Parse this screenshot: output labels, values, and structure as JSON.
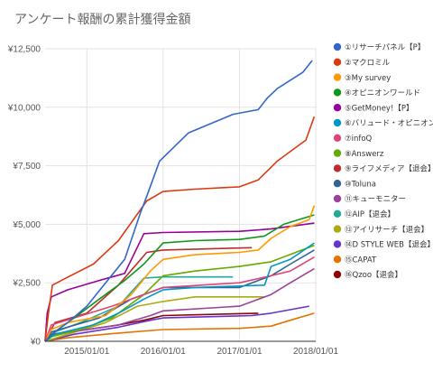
{
  "chart_data": {
    "type": "line",
    "title": "アンケート報酬の累計獲得金額",
    "xlabel": "",
    "ylabel": "",
    "x_range": [
      "2014-06-15",
      "2018-01-01"
    ],
    "ylim": [
      0,
      12500
    ],
    "y_ticks": [
      0,
      2500,
      5000,
      7500,
      10000,
      12500
    ],
    "y_tick_labels": [
      "¥0",
      "¥2,500",
      "¥5,000",
      "¥7,500",
      "¥10,000",
      "¥12,500"
    ],
    "x_ticks": [
      "2015-01-01",
      "2016-01-01",
      "2017-01-01",
      "2018-01-01"
    ],
    "x_tick_labels": [
      "2015/01/01",
      "2016/01/01",
      "2017/01/01",
      "2018/01/01"
    ],
    "grid": true,
    "legend_position": "right",
    "series": [
      {
        "name": "①リサーチパネル【P】",
        "color": "#3366cc",
        "points": [
          [
            "2014-06-15",
            0
          ],
          [
            "2014-07-15",
            300
          ],
          [
            "2014-08-15",
            500
          ],
          [
            "2014-10-01",
            800
          ],
          [
            "2015-01-01",
            1500
          ],
          [
            "2015-04-01",
            2500
          ],
          [
            "2015-07-01",
            3500
          ],
          [
            "2015-09-15",
            5500
          ],
          [
            "2015-10-15",
            6200
          ],
          [
            "2015-12-15",
            7700
          ],
          [
            "2016-05-01",
            8900
          ],
          [
            "2016-12-01",
            9700
          ],
          [
            "2017-04-01",
            9900
          ],
          [
            "2017-05-15",
            10400
          ],
          [
            "2017-07-01",
            10800
          ],
          [
            "2017-11-01",
            11500
          ],
          [
            "2017-12-15",
            12000
          ]
        ]
      },
      {
        "name": "②マクロミル",
        "color": "#dc3912",
        "points": [
          [
            "2014-06-15",
            0
          ],
          [
            "2014-07-01",
            1200
          ],
          [
            "2014-07-20",
            2400
          ],
          [
            "2014-09-01",
            2600
          ],
          [
            "2015-02-01",
            3300
          ],
          [
            "2015-06-01",
            4300
          ],
          [
            "2015-10-15",
            6000
          ],
          [
            "2016-01-01",
            6400
          ],
          [
            "2016-06-01",
            6500
          ],
          [
            "2017-01-01",
            6600
          ],
          [
            "2017-04-01",
            6900
          ],
          [
            "2017-07-01",
            7700
          ],
          [
            "2017-11-15",
            8600
          ],
          [
            "2017-12-25",
            9600
          ]
        ]
      },
      {
        "name": "③My survey",
        "color": "#ff9900",
        "points": [
          [
            "2014-06-15",
            0
          ],
          [
            "2014-07-15",
            500
          ],
          [
            "2014-10-01",
            800
          ],
          [
            "2015-04-01",
            1100
          ],
          [
            "2015-08-01",
            2000
          ],
          [
            "2015-11-01",
            3000
          ],
          [
            "2016-01-01",
            3500
          ],
          [
            "2016-06-01",
            3700
          ],
          [
            "2017-01-01",
            3800
          ],
          [
            "2017-04-01",
            3900
          ],
          [
            "2017-06-01",
            4400
          ],
          [
            "2017-09-01",
            4900
          ],
          [
            "2017-12-01",
            5200
          ],
          [
            "2017-12-25",
            5800
          ]
        ]
      },
      {
        "name": "④オピニオンワールド",
        "color": "#109618",
        "points": [
          [
            "2014-06-15",
            0
          ],
          [
            "2014-08-01",
            400
          ],
          [
            "2014-11-01",
            1000
          ],
          [
            "2015-03-01",
            1800
          ],
          [
            "2015-07-01",
            2600
          ],
          [
            "2015-10-01",
            3300
          ],
          [
            "2016-01-01",
            4200
          ],
          [
            "2016-06-01",
            4300
          ],
          [
            "2017-01-01",
            4350
          ],
          [
            "2017-05-01",
            4500
          ],
          [
            "2017-08-01",
            5000
          ],
          [
            "2017-12-25",
            5400
          ]
        ]
      },
      {
        "name": "⑤GetMoney!【P】",
        "color": "#990099",
        "points": [
          [
            "2014-06-15",
            0
          ],
          [
            "2014-06-25",
            1200
          ],
          [
            "2014-07-15",
            1900
          ],
          [
            "2014-10-01",
            2200
          ],
          [
            "2015-03-01",
            2600
          ],
          [
            "2015-07-01",
            2900
          ],
          [
            "2015-10-01",
            4600
          ],
          [
            "2016-01-01",
            4650
          ],
          [
            "2017-01-01",
            4700
          ],
          [
            "2017-06-01",
            4800
          ],
          [
            "2017-12-25",
            5050
          ]
        ]
      },
      {
        "name": "⑥バリュード・オピニオン",
        "color": "#0099c6",
        "points": [
          [
            "2014-06-15",
            0
          ],
          [
            "2014-08-01",
            300
          ],
          [
            "2015-02-01",
            700
          ],
          [
            "2015-06-01",
            1200
          ],
          [
            "2015-10-01",
            1800
          ],
          [
            "2016-01-01",
            2200
          ],
          [
            "2016-06-01",
            2300
          ],
          [
            "2017-05-01",
            2400
          ],
          [
            "2017-06-01",
            3200
          ],
          [
            "2017-09-01",
            3500
          ],
          [
            "2017-12-25",
            4200
          ]
        ]
      },
      {
        "name": "⑦infoQ",
        "color": "#dd4477",
        "points": [
          [
            "2014-06-15",
            0
          ],
          [
            "2014-07-15",
            700
          ],
          [
            "2014-11-01",
            1000
          ],
          [
            "2015-05-01",
            1500
          ],
          [
            "2015-10-01",
            2000
          ],
          [
            "2016-01-01",
            2300
          ],
          [
            "2017-01-01",
            2500
          ],
          [
            "2017-06-01",
            2800
          ],
          [
            "2017-09-01",
            3000
          ],
          [
            "2017-12-25",
            3600
          ]
        ]
      },
      {
        "name": "⑧Answerz",
        "color": "#66aa00",
        "points": [
          [
            "2014-06-15",
            0
          ],
          [
            "2014-07-15",
            200
          ],
          [
            "2014-12-01",
            500
          ],
          [
            "2015-05-01",
            1000
          ],
          [
            "2015-10-01",
            2000
          ],
          [
            "2016-01-01",
            2800
          ],
          [
            "2016-06-01",
            3000
          ],
          [
            "2017-01-01",
            3200
          ],
          [
            "2017-06-01",
            3400
          ],
          [
            "2017-12-25",
            4100
          ]
        ]
      },
      {
        "name": "⑨ライフメディア【退会】",
        "color": "#b82e2e",
        "points": [
          [
            "2014-06-15",
            0
          ],
          [
            "2014-08-01",
            800
          ],
          [
            "2015-01-01",
            1200
          ],
          [
            "2015-06-01",
            2400
          ],
          [
            "2015-10-15",
            3800
          ],
          [
            "2016-01-01",
            3900
          ],
          [
            "2017-03-01",
            4000
          ]
        ]
      },
      {
        "name": "⑩Toluna",
        "color": "#316395",
        "points": [
          [
            "2014-06-15",
            0
          ],
          [
            "2014-07-15",
            400
          ],
          [
            "2015-03-01",
            1000
          ],
          [
            "2015-08-01",
            1800
          ],
          [
            "2016-01-01",
            2300
          ],
          [
            "2017-01-01",
            2300
          ],
          [
            "2017-06-01",
            2800
          ],
          [
            "2017-09-01",
            3300
          ],
          [
            "2017-12-25",
            3900
          ]
        ]
      },
      {
        "name": "⑪キューモニター",
        "color": "#994499",
        "points": [
          [
            "2014-06-15",
            0
          ],
          [
            "2014-08-01",
            300
          ],
          [
            "2015-06-01",
            700
          ],
          [
            "2015-11-01",
            1100
          ],
          [
            "2016-01-01",
            1300
          ],
          [
            "2017-01-01",
            1500
          ],
          [
            "2017-06-01",
            2000
          ],
          [
            "2017-09-01",
            2500
          ],
          [
            "2017-12-25",
            3100
          ]
        ]
      },
      {
        "name": "⑫AIP【退会】",
        "color": "#22aa99",
        "points": [
          [
            "2014-06-15",
            0
          ],
          [
            "2014-08-01",
            400
          ],
          [
            "2014-12-01",
            800
          ],
          [
            "2015-06-01",
            1500
          ],
          [
            "2015-10-01",
            2700
          ],
          [
            "2016-01-01",
            2750
          ],
          [
            "2016-12-01",
            2750
          ]
        ]
      },
      {
        "name": "⑬アイリサーチ【退会】",
        "color": "#aaaa11",
        "points": [
          [
            "2014-06-15",
            0
          ],
          [
            "2014-10-01",
            300
          ],
          [
            "2015-04-01",
            800
          ],
          [
            "2015-09-01",
            1500
          ],
          [
            "2016-01-01",
            1700
          ],
          [
            "2016-06-01",
            1900
          ],
          [
            "2017-05-01",
            1900
          ]
        ]
      },
      {
        "name": "⑭D STYLE WEB【退会】",
        "color": "#6633cc",
        "points": [
          [
            "2014-06-15",
            0
          ],
          [
            "2014-11-01",
            300
          ],
          [
            "2015-06-01",
            600
          ],
          [
            "2015-11-01",
            900
          ],
          [
            "2016-01-01",
            1000
          ],
          [
            "2017-03-01",
            1100
          ],
          [
            "2017-06-01",
            1200
          ],
          [
            "2017-12-01",
            1500
          ]
        ]
      },
      {
        "name": "⑮CAPAT",
        "color": "#e67300",
        "points": [
          [
            "2014-06-15",
            0
          ],
          [
            "2014-10-01",
            150
          ],
          [
            "2015-06-01",
            350
          ],
          [
            "2016-01-01",
            500
          ],
          [
            "2017-01-01",
            550
          ],
          [
            "2017-06-01",
            650
          ],
          [
            "2017-09-01",
            900
          ],
          [
            "2017-12-25",
            1200
          ]
        ]
      },
      {
        "name": "⑯Qzoo【退会】",
        "color": "#8b0707",
        "points": [
          [
            "2014-06-15",
            0
          ],
          [
            "2014-07-15",
            300
          ],
          [
            "2015-01-01",
            500
          ],
          [
            "2015-06-01",
            700
          ],
          [
            "2015-10-01",
            900
          ],
          [
            "2016-01-01",
            1100
          ],
          [
            "2017-04-01",
            1200
          ]
        ]
      }
    ]
  }
}
